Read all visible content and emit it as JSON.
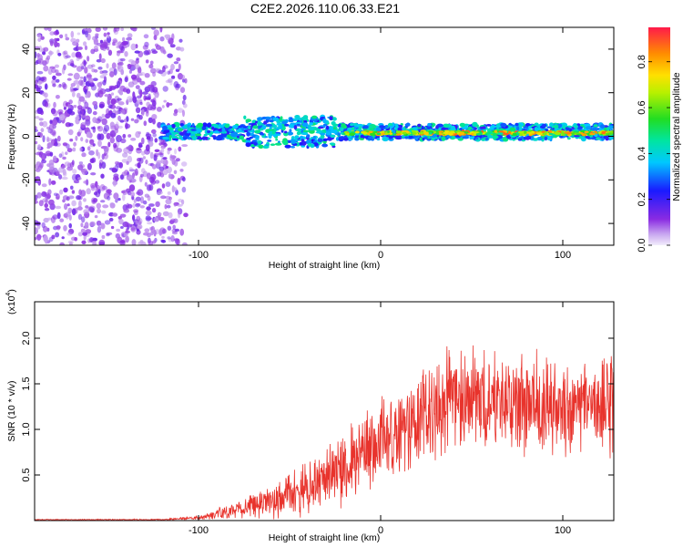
{
  "title": "C2E2.2026.110.06.33.E21",
  "chart_data": [
    {
      "type": "heatmap",
      "name": "spectrogram",
      "xlabel": "Height of straight line (km)",
      "ylabel": "Frequency (Hz)",
      "xlim": [
        -190,
        128
      ],
      "ylim": [
        -50,
        50
      ],
      "xticks": [
        -100,
        0,
        100
      ],
      "yticks": [
        -40,
        -20,
        0,
        20,
        40
      ],
      "colorbar": {
        "label": "Normalized spectral amplitude",
        "range": [
          0,
          0.95
        ],
        "ticks": [
          "0.0",
          "0.2",
          "0.4",
          "0.6",
          "0.8"
        ],
        "tick_values": [
          0,
          0.2,
          0.4,
          0.6,
          0.8
        ]
      },
      "regions": [
        {
          "description": "diffuse noise",
          "x_range": [
            -190,
            -107
          ],
          "freq_range": [
            -50,
            50
          ],
          "amplitude": 0.15
        },
        {
          "description": "signal band",
          "x_range": [
            -120,
            128
          ],
          "center_freq_hz": 2,
          "band_width_hz": 8,
          "amplitude": 0.35
        },
        {
          "description": "strong carrier",
          "x_range": [
            -20,
            128
          ],
          "center_freq_hz": 1.5,
          "amplitude": 0.85
        }
      ]
    },
    {
      "type": "line",
      "name": "snr",
      "xlabel": "Height of straight line (km)",
      "ylabel": "SNR (10 * v/v)",
      "y_multiplier": "(x10^4)",
      "y_multiplier_base": "(x10",
      "y_multiplier_exp": "4",
      "y_multiplier_close": ")",
      "xlim": [
        -190,
        128
      ],
      "ylim": [
        0,
        2.4
      ],
      "xticks": [
        -100,
        0,
        100
      ],
      "yticks": [
        0.5,
        1.0,
        1.5,
        2.0
      ],
      "ytick_labels": [
        "0.5",
        "1.0",
        "1.5",
        "2.0"
      ],
      "series": [
        {
          "name": "SNR",
          "color": "#e8332c",
          "x": [
            -190,
            -150,
            -120,
            -100,
            -90,
            -80,
            -70,
            -60,
            -50,
            -40,
            -30,
            -20,
            -10,
            0,
            10,
            20,
            30,
            40,
            50,
            60,
            70,
            80,
            90,
            100,
            110,
            120,
            128
          ],
          "mean": [
            0.01,
            0.01,
            0.01,
            0.03,
            0.07,
            0.11,
            0.16,
            0.22,
            0.3,
            0.38,
            0.45,
            0.56,
            0.72,
            0.85,
            0.98,
            1.12,
            1.25,
            1.33,
            1.32,
            1.3,
            1.28,
            1.3,
            1.25,
            1.25,
            1.28,
            1.28,
            1.3
          ],
          "amp": [
            0.005,
            0.005,
            0.008,
            0.02,
            0.06,
            0.09,
            0.14,
            0.18,
            0.25,
            0.3,
            0.35,
            0.4,
            0.45,
            0.45,
            0.5,
            0.55,
            0.55,
            0.55,
            0.55,
            0.55,
            0.55,
            0.55,
            0.55,
            0.55,
            0.55,
            0.55,
            0.6
          ]
        }
      ]
    }
  ],
  "colors": {
    "line": "#e8332c",
    "axis": "#000000"
  }
}
